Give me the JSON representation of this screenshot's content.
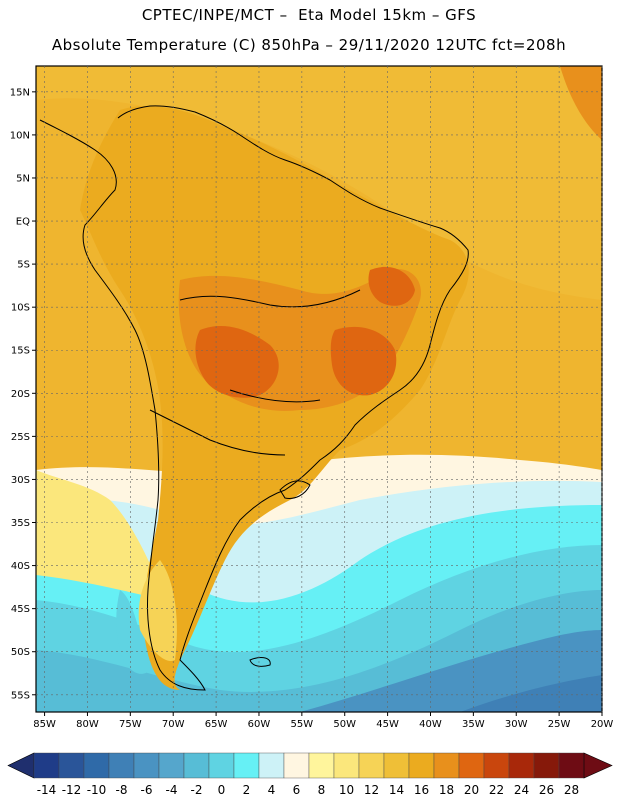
{
  "header": {
    "line1": "CPTEC/INPE/MCT –  Eta Model 15km – GFS",
    "line2": "Absolute Temperature (C) 850hPa – 29/11/2020 12UTC fct=208h"
  },
  "map": {
    "lat_labels": [
      "15N",
      "10N",
      "5N",
      "EQ",
      "5S",
      "10S",
      "15S",
      "20S",
      "25S",
      "30S",
      "35S",
      "40S",
      "45S",
      "50S",
      "55S"
    ],
    "lon_labels": [
      "85W",
      "80W",
      "75W",
      "70W",
      "65W",
      "60W",
      "55W",
      "50W",
      "45W",
      "40W",
      "35W",
      "30W",
      "25W",
      "20W"
    ]
  },
  "colorbar": {
    "labels": [
      "-14",
      "-12",
      "-10",
      "-8",
      "-6",
      "-4",
      "-2",
      "0",
      "2",
      "4",
      "6",
      "8",
      "10",
      "12",
      "14",
      "16",
      "18",
      "20",
      "22",
      "24",
      "26",
      "28"
    ],
    "colors": [
      "#1f3c88",
      "#2a5599",
      "#2f6aa8",
      "#3f80b6",
      "#4a93c2",
      "#55a6cc",
      "#57bdd6",
      "#5fd3e2",
      "#66f0f5",
      "#cdf2f7",
      "#fff6e1",
      "#fff59c",
      "#fbe77c",
      "#f6d356",
      "#efbf37",
      "#ebab1f",
      "#e8901c",
      "#df6611",
      "#c9460d",
      "#a8280a",
      "#86190a",
      "#6e0c14"
    ]
  }
}
